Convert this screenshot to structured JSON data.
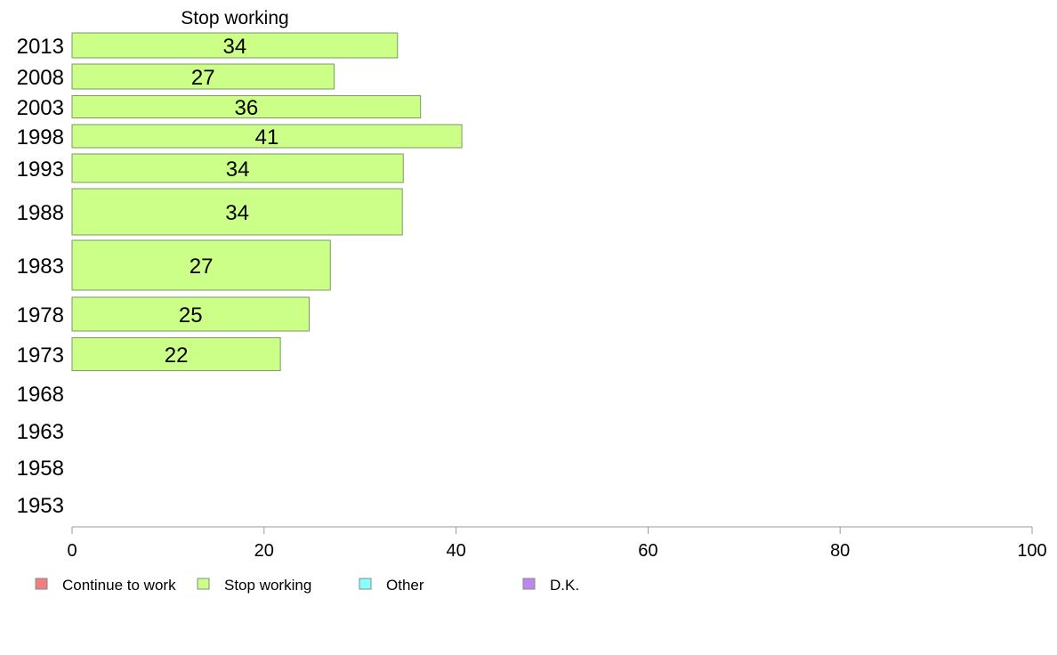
{
  "chart_data": {
    "type": "bar",
    "orientation": "horizontal",
    "title": "Stop working",
    "xlim": [
      0,
      100
    ],
    "x_ticks": [
      "0",
      "20",
      "40",
      "60",
      "80",
      "100"
    ],
    "grid": false,
    "legend_placement": "bottom",
    "categories": [
      "2013",
      "2008",
      "2003",
      "1998",
      "1993",
      "1988",
      "1983",
      "1978",
      "1973",
      "1968",
      "1963",
      "1958",
      "1953"
    ],
    "series": [
      {
        "name": "Stop working",
        "color": "#ccff88",
        "values": [
          34,
          27,
          36,
          41,
          34,
          34,
          27,
          25,
          22,
          null,
          null,
          null,
          null
        ],
        "exact_values": [
          33.9,
          27.3,
          36.3,
          40.6,
          34.5,
          34.4,
          26.9,
          24.7,
          21.7,
          null,
          null,
          null,
          null
        ]
      }
    ],
    "legend": [
      {
        "label": "Continue to work",
        "color": "#f08080"
      },
      {
        "label": "Stop working",
        "color": "#ccff88"
      },
      {
        "label": "Other",
        "color": "#88ffff"
      },
      {
        "label": "D.K.",
        "color": "#bb88ee"
      }
    ]
  }
}
